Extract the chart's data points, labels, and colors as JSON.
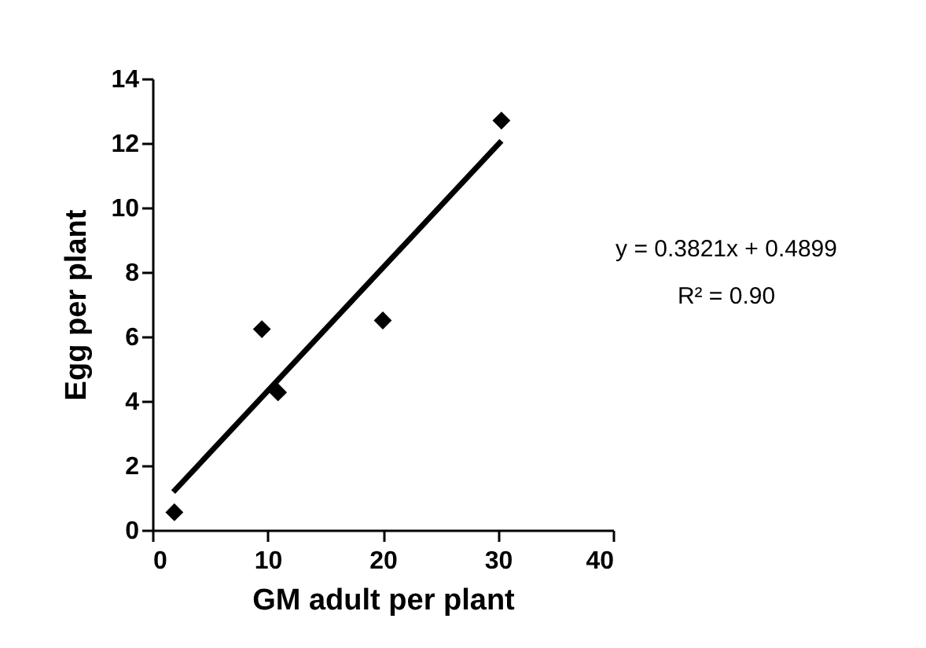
{
  "chart_data": {
    "type": "scatter",
    "xlabel": "GM adult per plant",
    "ylabel": "Egg per plant",
    "xlim": [
      0,
      40
    ],
    "xticks": [
      0,
      10,
      20,
      30,
      40
    ],
    "ylim": [
      0,
      14
    ],
    "yticks": [
      0,
      2,
      4,
      6,
      8,
      10,
      12,
      14
    ],
    "grid": false,
    "series": [
      {
        "marker": "diamond",
        "color": "#000000",
        "x": [
          1.9,
          9.5,
          10.9,
          20.0,
          30.3
        ],
        "values": [
          0.55,
          6.23,
          4.27,
          6.5,
          12.7
        ]
      },
      {
        "type": "line",
        "color": "#000000",
        "x": [
          1.8,
          30.3
        ],
        "values": [
          1.18,
          12.07
        ]
      }
    ],
    "annotations": [
      "y = 0.3821x + 0.4899",
      "R² = 0.90"
    ]
  }
}
